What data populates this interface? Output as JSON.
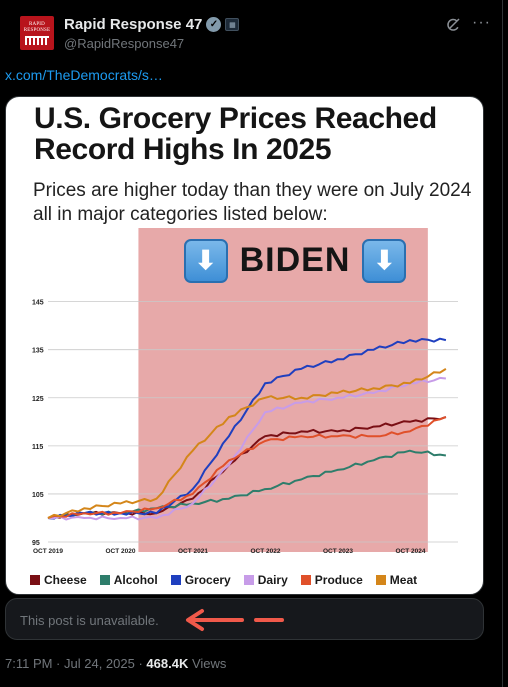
{
  "post": {
    "display_name": "Rapid Response 47",
    "handle": "@RapidResponse47",
    "link_text": "x.com/TheDemocrats/s…",
    "avatar_text_1": "RAPID",
    "avatar_text_2": "RESPONSE",
    "icons": [
      "verified-badge-icon",
      "affiliate-badge-icon",
      "grok-icon",
      "more-icon"
    ]
  },
  "infographic": {
    "title": "U.S. Grocery Prices Reached Record Highs In 2025",
    "subtitle": "Prices are higher today than they were on July 2024 all in major categories listed below:",
    "banner_text": "BIDEN",
    "banner_icon": "down-arrow-icon"
  },
  "chart_data": {
    "type": "line",
    "title": "",
    "ylim": [
      95,
      147
    ],
    "y_ticks": [
      "145",
      "135",
      "125",
      "115",
      "105",
      "95"
    ],
    "x_ticks": [
      "OCT 2019",
      "OCT 2020",
      "OCT 2021",
      "OCT 2022",
      "OCT 2023",
      "OCT 2024"
    ],
    "x": [
      "2019-10",
      "2020-04",
      "2020-10",
      "2021-04",
      "2021-10",
      "2022-04",
      "2022-10",
      "2023-04",
      "2023-10",
      "2024-04",
      "2024-10",
      "2025-04"
    ],
    "shaded_region": {
      "label": "BIDEN",
      "start": "2021-01",
      "end": "2025-01",
      "color": "#e39a9a"
    },
    "series": [
      {
        "name": "Cheese",
        "color": "#7a0f14",
        "values": [
          100,
          101,
          101,
          101,
          104,
          111,
          117,
          118,
          118,
          119,
          120,
          121
        ]
      },
      {
        "name": "Alcohol",
        "color": "#2e7d6b",
        "values": [
          100,
          101,
          101,
          102,
          103,
          104,
          106,
          108,
          110,
          112,
          114,
          113
        ]
      },
      {
        "name": "Grocery",
        "color": "#1f3fbf",
        "values": [
          100,
          101,
          101,
          101,
          106,
          117,
          128,
          131,
          133,
          135,
          137,
          137
        ]
      },
      {
        "name": "Dairy",
        "color": "#c79ce8",
        "values": [
          100,
          100,
          100,
          100,
          103,
          111,
          122,
          124,
          125,
          126,
          128,
          129
        ]
      },
      {
        "name": "Produce",
        "color": "#e0502a",
        "values": [
          100,
          101,
          101,
          102,
          105,
          112,
          116,
          117,
          117,
          117,
          118,
          121
        ]
      },
      {
        "name": "Meat",
        "color": "#d4861a",
        "values": [
          100,
          102,
          103,
          104,
          114,
          121,
          125,
          125,
          126,
          127,
          128,
          131
        ]
      }
    ],
    "grid": true,
    "legend": "bottom"
  },
  "unavailable": {
    "text": "This post is unavailable."
  },
  "meta": {
    "timestamp": "7:11 PM · Jul 24, 2025 ·",
    "views_count": "468.4K",
    "views_label": "Views"
  }
}
